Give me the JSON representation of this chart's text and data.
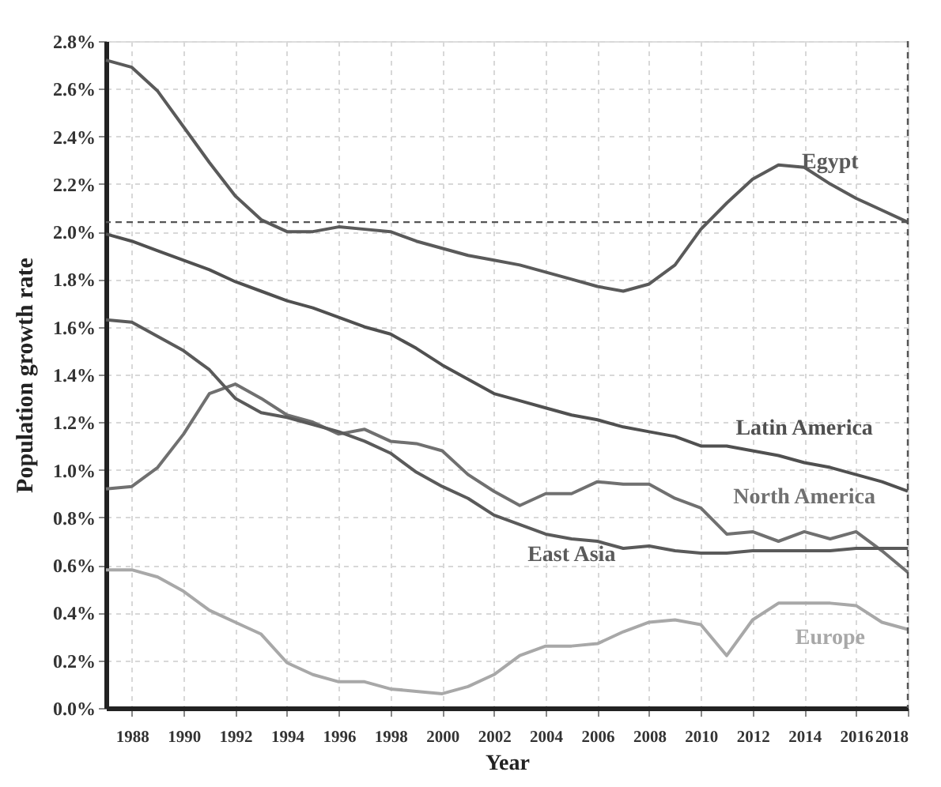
{
  "chart_data": {
    "type": "line",
    "xlabel": "Year",
    "ylabel": "Population growth rate",
    "x": [
      1987,
      1988,
      1989,
      1990,
      1991,
      1992,
      1993,
      1994,
      1995,
      1996,
      1997,
      1998,
      1999,
      2000,
      2001,
      2002,
      2003,
      2004,
      2005,
      2006,
      2007,
      2008,
      2009,
      2010,
      2011,
      2012,
      2013,
      2014,
      2015,
      2016,
      2017,
      2018
    ],
    "series": [
      {
        "name": "Egypt",
        "color": "#5a5a5a",
        "values": [
          2.72,
          2.69,
          2.59,
          2.44,
          2.29,
          2.15,
          2.05,
          2.0,
          2.0,
          2.02,
          2.01,
          2.0,
          1.96,
          1.93,
          1.9,
          1.88,
          1.86,
          1.83,
          1.8,
          1.77,
          1.75,
          1.78,
          1.86,
          2.01,
          2.12,
          2.22,
          2.28,
          2.27,
          2.2,
          2.14,
          2.09,
          2.04
        ]
      },
      {
        "name": "Latin America",
        "color": "#505050",
        "values": [
          1.99,
          1.96,
          1.92,
          1.88,
          1.84,
          1.79,
          1.75,
          1.71,
          1.68,
          1.64,
          1.6,
          1.57,
          1.51,
          1.44,
          1.38,
          1.32,
          1.29,
          1.26,
          1.23,
          1.21,
          1.18,
          1.16,
          1.14,
          1.1,
          1.1,
          1.08,
          1.06,
          1.03,
          1.01,
          0.98,
          0.95,
          0.91
        ]
      },
      {
        "name": "North America",
        "color": "#707070",
        "values": [
          0.92,
          0.93,
          1.01,
          1.15,
          1.32,
          1.36,
          1.3,
          1.23,
          1.2,
          1.15,
          1.17,
          1.12,
          1.11,
          1.08,
          0.98,
          0.91,
          0.85,
          0.9,
          0.9,
          0.95,
          0.94,
          0.94,
          0.88,
          0.84,
          0.73,
          0.74,
          0.7,
          0.74,
          0.71,
          0.74,
          0.66,
          0.57
        ]
      },
      {
        "name": "East Asia",
        "color": "#5a5a5a",
        "values": [
          1.63,
          1.62,
          1.56,
          1.5,
          1.42,
          1.3,
          1.24,
          1.22,
          1.19,
          1.16,
          1.12,
          1.07,
          0.99,
          0.93,
          0.88,
          0.81,
          0.77,
          0.73,
          0.71,
          0.7,
          0.67,
          0.68,
          0.66,
          0.65,
          0.65,
          0.66,
          0.66,
          0.66,
          0.66,
          0.67,
          0.67,
          0.67
        ]
      },
      {
        "name": "Europe",
        "color": "#a8a8a8",
        "values": [
          0.58,
          0.58,
          0.55,
          0.49,
          0.41,
          0.36,
          0.31,
          0.19,
          0.14,
          0.11,
          0.11,
          0.08,
          0.07,
          0.06,
          0.09,
          0.14,
          0.22,
          0.26,
          0.26,
          0.27,
          0.32,
          0.36,
          0.37,
          0.35,
          0.22,
          0.37,
          0.44,
          0.44,
          0.44,
          0.43,
          0.36,
          0.33
        ]
      }
    ],
    "xlim": [
      1987,
      2018
    ],
    "xticks": [
      1988,
      1990,
      1992,
      1994,
      1996,
      1998,
      2000,
      2002,
      2004,
      2006,
      2008,
      2010,
      2012,
      2014,
      2016,
      2018
    ],
    "ylim": [
      0,
      2.8
    ],
    "yticks": [
      {
        "value": 0,
        "label": "0.0%"
      },
      {
        "value": 0.2,
        "label": "0.2%"
      },
      {
        "value": 0.4,
        "label": "0.4%"
      },
      {
        "value": 0.6,
        "label": "0.6%"
      },
      {
        "value": 0.8,
        "label": "0.8%"
      },
      {
        "value": 1.0,
        "label": "1.0%"
      },
      {
        "value": 1.2,
        "label": "1.2%"
      },
      {
        "value": 1.4,
        "label": "1.4%"
      },
      {
        "value": 1.6,
        "label": "1.6%"
      },
      {
        "value": 1.8,
        "label": "1.8%"
      },
      {
        "value": 2.0,
        "label": "2.0%"
      },
      {
        "value": 2.2,
        "label": "2.2%"
      },
      {
        "value": 2.4,
        "label": "2.4%"
      },
      {
        "value": 2.6,
        "label": "2.6%"
      },
      {
        "value": 2.8,
        "label": "2.8%"
      }
    ],
    "ref_lines": [
      {
        "axis": "y",
        "value": 2.04,
        "color": "#555555",
        "line_style": "dashed"
      },
      {
        "axis": "x",
        "value": 2018,
        "color": "#555555",
        "line_style": "dashed"
      }
    ],
    "grid": true,
    "marker": "none",
    "line_style": "solid"
  }
}
